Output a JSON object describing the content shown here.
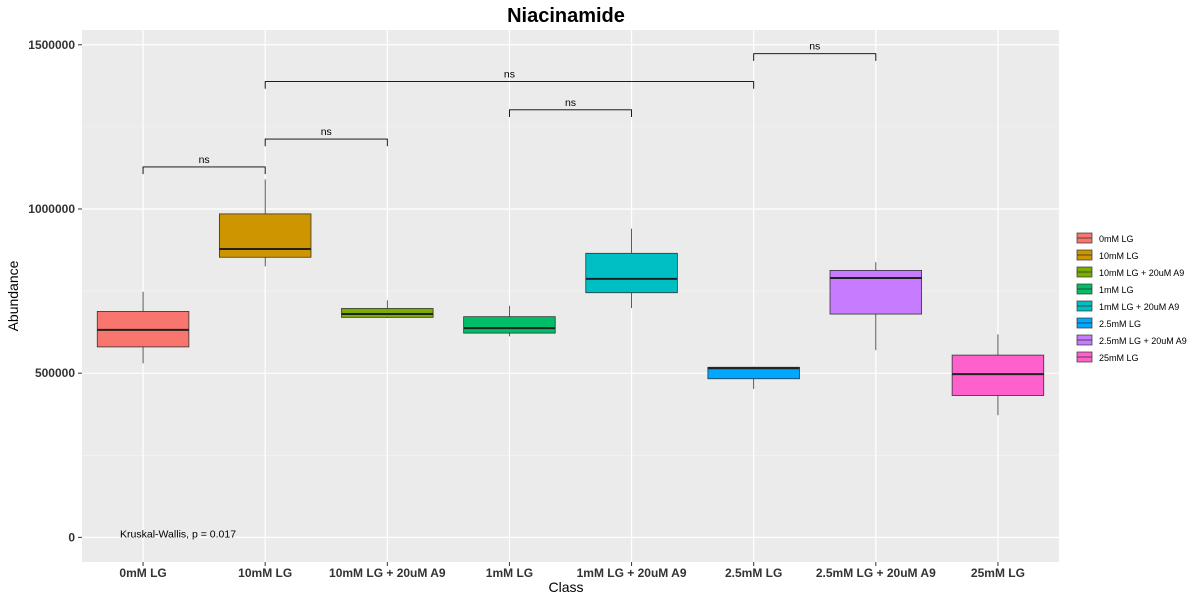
{
  "chart_data": {
    "type": "box",
    "title": "Niacinamide",
    "xlabel": "Class",
    "ylabel": "Abundance",
    "ylim": [
      -75000,
      1545000
    ],
    "yticks": [
      0,
      500000,
      1000000,
      1500000
    ],
    "ytick_labels": [
      "0",
      "500000",
      "1000000",
      "1500000"
    ],
    "grid": true,
    "legend_position": "right",
    "categories": [
      "0mM LG",
      "10mM LG",
      "10mM LG + 20uM A9",
      "1mM LG",
      "1mM LG + 20uM A9",
      "2.5mM LG",
      "2.5mM LG + 20uM A9",
      "25mM LG"
    ],
    "boxes": [
      {
        "name": "0mM LG",
        "color": "#F8766D",
        "min": 530000,
        "q1": 580000,
        "median": 632000,
        "q3": 688000,
        "max": 748000
      },
      {
        "name": "10mM LG",
        "color": "#CD9600",
        "min": 825000,
        "q1": 853000,
        "median": 878000,
        "q3": 985000,
        "max": 1090000
      },
      {
        "name": "10mM LG + 20uM A9",
        "color": "#7CAE00",
        "min": 668000,
        "q1": 670000,
        "median": 680000,
        "q3": 697000,
        "max": 722000
      },
      {
        "name": "1mM LG",
        "color": "#00BE67",
        "min": 612000,
        "q1": 622000,
        "median": 637000,
        "q3": 672000,
        "max": 705000
      },
      {
        "name": "1mM LG + 20uM A9",
        "color": "#00BFC4",
        "min": 698000,
        "q1": 745000,
        "median": 787000,
        "q3": 865000,
        "max": 940000
      },
      {
        "name": "2.5mM LG",
        "color": "#00A9FF",
        "min": 452000,
        "q1": 483000,
        "median": 515000,
        "q3": 518000,
        "max": 520000
      },
      {
        "name": "2.5mM LG + 20uM A9",
        "color": "#C77CFF",
        "min": 570000,
        "q1": 680000,
        "median": 790000,
        "q3": 813000,
        "max": 838000
      },
      {
        "name": "25mM LG",
        "color": "#FF61CC",
        "min": 372000,
        "q1": 432000,
        "median": 497000,
        "q3": 555000,
        "max": 618000
      }
    ],
    "comparisons": [
      {
        "from": 0,
        "to": 1,
        "y": 1128000,
        "drop": 22000,
        "label": "ns"
      },
      {
        "from": 1,
        "to": 2,
        "y": 1213000,
        "drop": 22000,
        "label": "ns"
      },
      {
        "from": 3,
        "to": 4,
        "y": 1302000,
        "drop": 22000,
        "label": "ns"
      },
      {
        "from": 1,
        "to": 5,
        "y": 1388000,
        "drop": 22000,
        "label": "ns"
      },
      {
        "from": 5,
        "to": 6,
        "y": 1473000,
        "drop": 22000,
        "label": "ns"
      }
    ],
    "annotation": "Kruskal-Wallis, p = 0.017",
    "annotation_anchor": {
      "category_pos": 0,
      "y": 12000
    }
  }
}
